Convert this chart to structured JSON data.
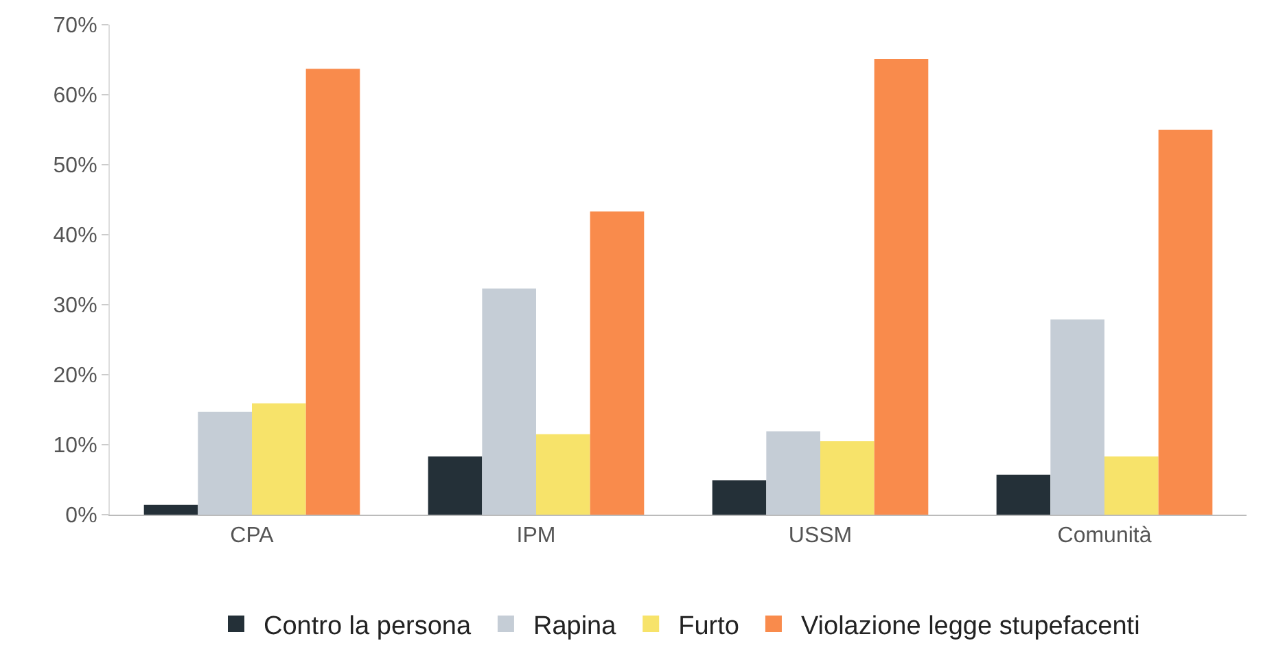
{
  "chart_data": {
    "type": "bar",
    "categories": [
      "CPA",
      "IPM",
      "USSM",
      "Comunità"
    ],
    "series": [
      {
        "name": "Contro la persona",
        "color": "#243038",
        "values": [
          1.4,
          8.3,
          4.9,
          5.7
        ]
      },
      {
        "name": "Rapina",
        "color": "#c5cdd6",
        "values": [
          14.7,
          32.3,
          11.9,
          27.9
        ]
      },
      {
        "name": "Furto",
        "color": "#f7e36a",
        "values": [
          15.9,
          11.5,
          10.5,
          8.3
        ]
      },
      {
        "name": "Violazione legge stupefacenti",
        "color": "#f98b4c",
        "values": [
          63.7,
          43.3,
          65.1,
          55.0
        ]
      }
    ],
    "ylim": [
      0,
      70
    ],
    "yticks": [
      {
        "value": 0,
        "label": "0%"
      },
      {
        "value": 10,
        "label": "10%"
      },
      {
        "value": 20,
        "label": "20%"
      },
      {
        "value": 30,
        "label": "30%"
      },
      {
        "value": 40,
        "label": "40%"
      },
      {
        "value": 50,
        "label": "50%"
      },
      {
        "value": 60,
        "label": "60%"
      },
      {
        "value": 70,
        "label": "70%"
      }
    ],
    "grid": false,
    "legend": "bottom"
  }
}
